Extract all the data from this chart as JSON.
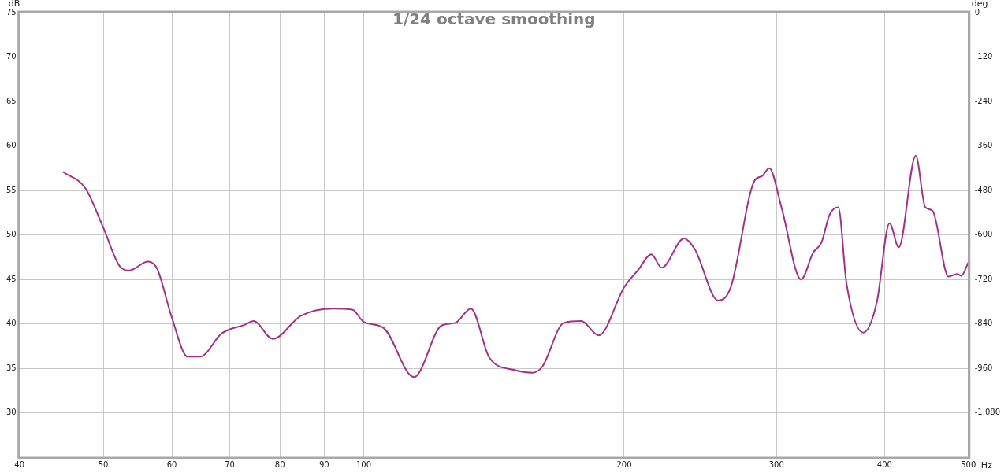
{
  "chart_data": {
    "type": "line",
    "title": "1/24 octave smoothing",
    "xlabel": "Hz",
    "ylabel": "dB",
    "y2label": "deg",
    "log": "x",
    "grid": true,
    "legend": false,
    "marker": "none",
    "line_style": "solid",
    "xlim": [
      40,
      500
    ],
    "xticks": [
      40,
      50,
      60,
      70,
      80,
      90,
      100,
      200,
      300,
      400,
      500
    ],
    "ylim": [
      25,
      75
    ],
    "yticks": [
      30,
      35,
      40,
      45,
      50,
      55,
      60,
      65,
      70,
      75
    ],
    "y2lim": [
      -1200,
      0
    ],
    "y2ticks": [
      {
        "value": -1080,
        "label": "-1,080"
      },
      -960,
      -840,
      -720,
      -600,
      -480,
      -360,
      -240,
      -120,
      0
    ],
    "series": [
      {
        "color": "#a3318a",
        "x": [
          44.9,
          47.7,
          50,
          52.3,
          53.6,
          56.3,
          57.7,
          60,
          62.6,
          64.7,
          68.5,
          72.9,
          74.6,
          78.5,
          84.6,
          92.2,
          97,
          100,
          105.5,
          114.3,
          123,
          127.6,
          133,
          139.7,
          149.3,
          156.8,
          160.9,
          170.3,
          178.4,
          186.9,
          200,
          207.8,
          215,
          221,
          234.6,
          241.3,
          257,
          265.6,
          283,
          288.6,
          294.3,
          304,
          320.3,
          330.8,
          338,
          345.7,
          353.6,
          361.5,
          377.9,
          391.6,
          405.3,
          415.4,
          434.6,
          445.8,
          454.5,
          474.2,
          485.3,
          490.6,
          500
        ],
        "values": [
          57.1,
          55.2,
          50.8,
          46.4,
          46,
          47,
          46.2,
          40.7,
          36.3,
          36.3,
          38.9,
          39.9,
          40.3,
          38.3,
          40.9,
          41.7,
          41.6,
          40.2,
          39.5,
          34,
          39.8,
          40.1,
          41.7,
          36.2,
          34.8,
          34.5,
          35.2,
          40.1,
          40.3,
          38.7,
          44.1,
          46.1,
          47.8,
          46.3,
          49.6,
          48.4,
          42.6,
          44.1,
          56.1,
          56.6,
          57.5,
          53.1,
          45,
          48,
          49.1,
          52.3,
          53.1,
          44.5,
          39,
          42.3,
          51.3,
          48.6,
          58.9,
          53.1,
          52.7,
          45.3,
          45.6,
          45.4,
          46.9
        ]
      }
    ]
  }
}
